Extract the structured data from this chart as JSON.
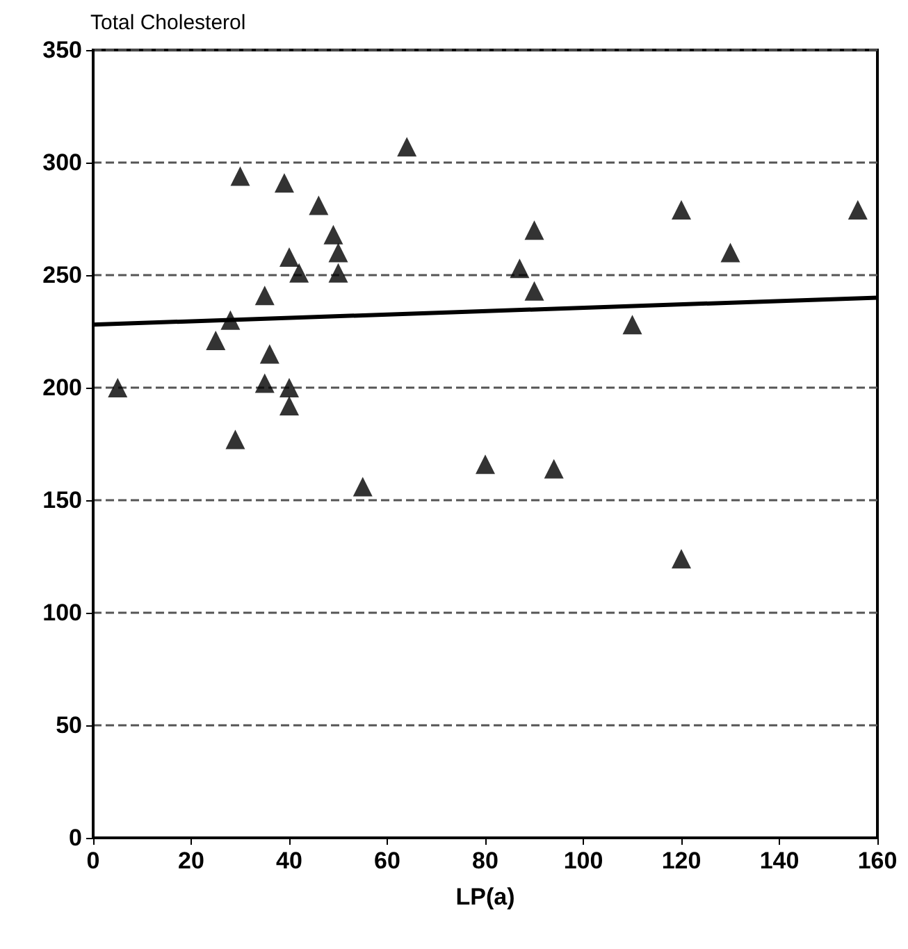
{
  "chart_data": {
    "type": "scatter",
    "ylabel": "Total Cholesterol",
    "xlabel": "LP(a)",
    "xlim": [
      0,
      160
    ],
    "xticks": [
      0,
      20,
      40,
      60,
      80,
      100,
      120,
      140,
      160
    ],
    "ylim": [
      0,
      350
    ],
    "yticks": [
      0,
      50,
      100,
      150,
      200,
      250,
      300,
      350
    ],
    "grid": "y",
    "marker": "triangle",
    "series": [
      {
        "color": "#000000",
        "x": [
          5,
          25,
          28,
          29,
          30,
          35,
          35,
          36,
          39,
          40,
          40,
          40,
          42,
          46,
          49,
          50,
          50,
          55,
          64,
          80,
          87,
          90,
          90,
          94,
          110,
          120,
          120,
          130,
          156
        ],
        "values": [
          200,
          221,
          230,
          177,
          294,
          241,
          202,
          215,
          291,
          258,
          200,
          192,
          251,
          281,
          268,
          260,
          251,
          156,
          307,
          166,
          253,
          270,
          243,
          164,
          228,
          279,
          124,
          260,
          279
        ]
      },
      {
        "type": "line",
        "color": "#000000",
        "marker": "none",
        "line_style": "solid",
        "x": [
          0,
          160
        ],
        "values": [
          228,
          240
        ]
      }
    ]
  }
}
